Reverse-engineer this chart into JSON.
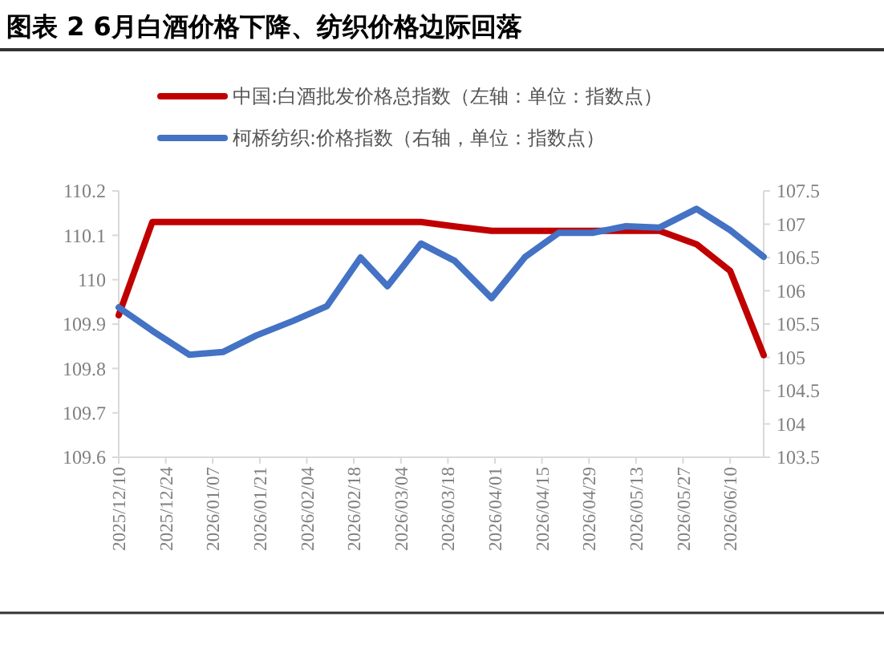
{
  "chart_data": {
    "type": "line",
    "title": "图表 2 6月白酒价格下降、纺织价格边际回落",
    "x": [
      "2025-12-10",
      "2025-12-20",
      "2025-12-31",
      "2026-01-10",
      "2026-01-20",
      "2026-01-31",
      "2026-02-10",
      "2026-02-20",
      "2026-02-28",
      "2026-03-10",
      "2026-03-20",
      "2026-03-31",
      "2026-04-10",
      "2026-04-20",
      "2026-04-30",
      "2026-05-10",
      "2026-05-20",
      "2026-05-31",
      "2026-06-10",
      "2026-06-20"
    ],
    "series": [
      {
        "name": "中国:白酒批发价格总指数（左轴：单位：指数点）",
        "color": "#c00000",
        "values": [
          109.92,
          110.13,
          110.13,
          110.13,
          110.13,
          110.13,
          110.13,
          110.13,
          110.13,
          110.13,
          110.12,
          110.11,
          110.11,
          110.11,
          110.11,
          110.11,
          110.11,
          110.08,
          110.02,
          109.83
        ]
      },
      {
        "name": "柯桥纺织:价格指数（右轴，单位：指数点）",
        "color": "#4472c4",
        "axis": "y2",
        "values": [
          105.75,
          105.4,
          105.04,
          105.08,
          105.33,
          105.55,
          105.77,
          106.5,
          106.07,
          106.71,
          106.45,
          105.89,
          106.51,
          106.87,
          106.87,
          106.97,
          106.95,
          107.23,
          106.91,
          106.51
        ]
      }
    ],
    "xlim": [
      "2025-12-10",
      "2026-06-20"
    ],
    "xticks": [
      {
        "value": "2025-12-10",
        "label": "2025/12/10"
      },
      {
        "value": "2025-12-24",
        "label": "2025/12/24"
      },
      {
        "value": "2026-01-07",
        "label": "2026/01/07"
      },
      {
        "value": "2026-01-21",
        "label": "2026/01/21"
      },
      {
        "value": "2026-02-04",
        "label": "2026/02/04"
      },
      {
        "value": "2026-02-18",
        "label": "2026/02/18"
      },
      {
        "value": "2026-03-04",
        "label": "2026/03/04"
      },
      {
        "value": "2026-03-18",
        "label": "2026/03/18"
      },
      {
        "value": "2026-04-01",
        "label": "2026/04/01"
      },
      {
        "value": "2026-04-15",
        "label": "2026/04/15"
      },
      {
        "value": "2026-04-29",
        "label": "2026/04/29"
      },
      {
        "value": "2026-05-13",
        "label": "2026/05/13"
      },
      {
        "value": "2026-05-27",
        "label": "2026/05/27"
      },
      {
        "value": "2026-06-10",
        "label": "2026/06/10"
      }
    ],
    "ylim": [
      109.6,
      110.2
    ],
    "yticks": [
      109.6,
      109.7,
      109.8,
      109.9,
      110,
      110.1,
      110.2
    ],
    "y2lim": [
      103.5,
      107.5
    ],
    "y2ticks": [
      103.5,
      104,
      104.5,
      105,
      105.5,
      106,
      106.5,
      107,
      107.5
    ],
    "legend": "top",
    "grid": false,
    "marker": "none",
    "line_style": "solid"
  }
}
